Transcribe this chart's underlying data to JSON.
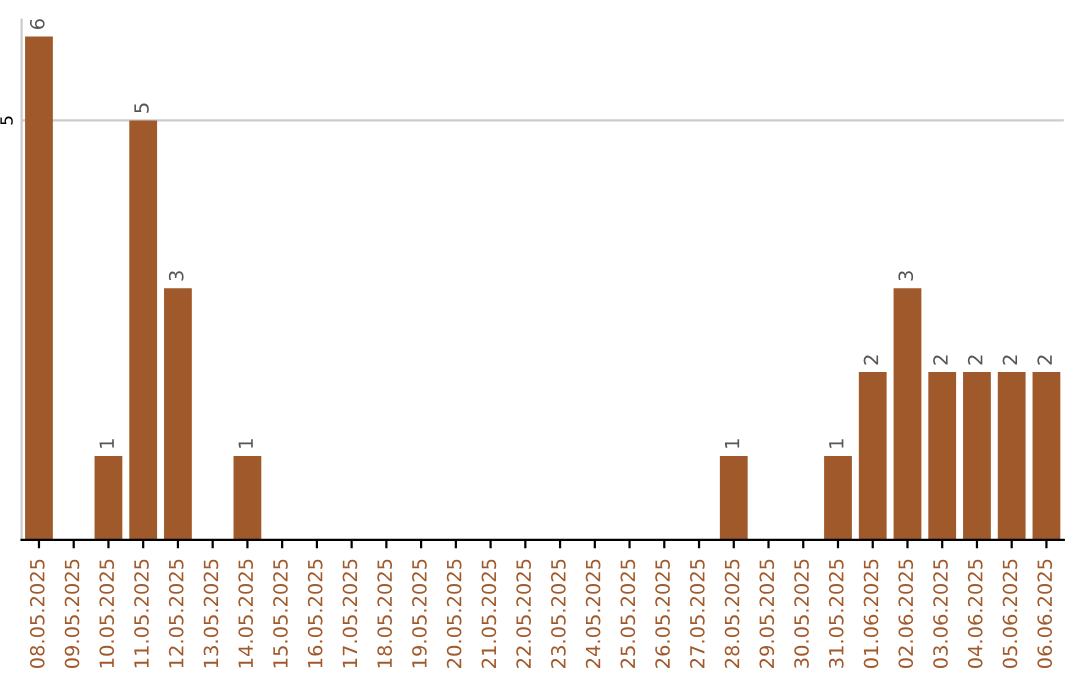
{
  "chart_data": {
    "type": "bar",
    "categories": [
      "08.05.2025",
      "09.05.2025",
      "10.05.2025",
      "11.05.2025",
      "12.05.2025",
      "13.05.2025",
      "14.05.2025",
      "15.05.2025",
      "16.05.2025",
      "17.05.2025",
      "18.05.2025",
      "19.05.2025",
      "20.05.2025",
      "21.05.2025",
      "22.05.2025",
      "23.05.2025",
      "24.05.2025",
      "25.05.2025",
      "26.05.2025",
      "27.05.2025",
      "28.05.2025",
      "29.05.2025",
      "30.05.2025",
      "31.05.2025",
      "01.06.2025",
      "02.06.2025",
      "03.06.2025",
      "04.06.2025",
      "05.06.2025",
      "06.06.2025"
    ],
    "values": [
      6,
      0,
      1,
      5,
      3,
      0,
      1,
      0,
      0,
      0,
      0,
      0,
      0,
      0,
      0,
      0,
      0,
      0,
      0,
      0,
      1,
      0,
      0,
      1,
      2,
      3,
      2,
      2,
      2,
      2
    ],
    "value_labels": [
      "6",
      null,
      "1",
      "5",
      "3",
      null,
      "1",
      null,
      null,
      null,
      null,
      null,
      null,
      null,
      null,
      null,
      null,
      null,
      null,
      null,
      "1",
      null,
      null,
      "1",
      "2",
      "3",
      "2",
      "2",
      "2",
      "2"
    ],
    "color": "#a0592b",
    "ylim": [
      0,
      6.2
    ],
    "yticks": [
      5
    ],
    "grid": "y",
    "legend": false
  }
}
